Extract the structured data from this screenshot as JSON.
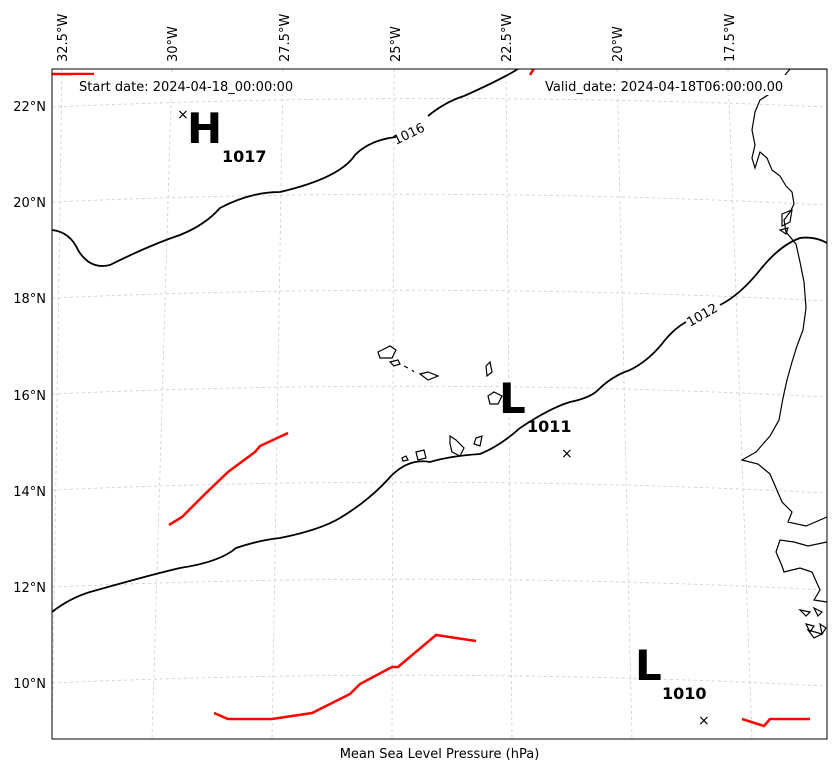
{
  "header": {
    "start_date": "Start date: 2024-04-18_00:00:00",
    "valid_date": "Valid_date: 2024-04-18T06:00:00.00"
  },
  "footer": {
    "caption": "Mean Sea Level Pressure (hPa)"
  },
  "longitude_labels": [
    "32.5°W",
    "30°W",
    "27.5°W",
    "25°W",
    "22.5°W",
    "20°W",
    "17.5°W"
  ],
  "latitude_labels": [
    "22°N",
    "20°N",
    "18°N",
    "16°N",
    "14°N",
    "12°N",
    "10°N"
  ],
  "contour_labels": [
    "1016",
    "1012"
  ],
  "pressure_centers": [
    {
      "type": "H",
      "value": "1017"
    },
    {
      "type": "L",
      "value": "1011"
    },
    {
      "type": "L",
      "value": "1010"
    }
  ],
  "colors": {
    "isobar": "#000000",
    "front": "#ff0000",
    "grid": "#cccccc",
    "coast": "#000000"
  }
}
